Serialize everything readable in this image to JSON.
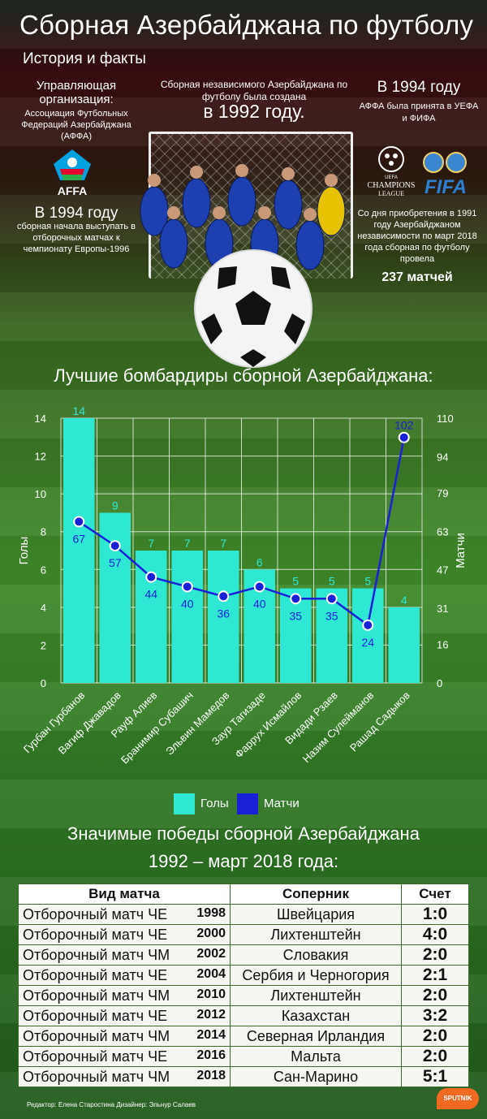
{
  "header": {
    "title": "Сборная Азербайджана по футболу",
    "subtitle": "История и факты"
  },
  "left_col": {
    "heading": "Управляющая организация:",
    "org": "Ассоциация Футбольных Федераций Азербайджана (АФФА)",
    "logo_text": "AFFA",
    "year_big": "В 1994 году",
    "year_text": "сборная начала выступать в отборочных матчах к чемпионату Европы-1996"
  },
  "center_col": {
    "intro": "Сборная независимого Азербайджана по футболу была создана",
    "year_big": "в 1992 году."
  },
  "right_col": {
    "year_big": "В 1994 году",
    "text": "АФФА была принята в УЕФА и ФИФА",
    "ucl_logo_line1": "CHAMPIONS",
    "ucl_logo_line2": "LEAGUE",
    "uefa_small": "UEFA",
    "fifa_logo": "FIFA",
    "stats_text": "Со дня приобретения в 1991 году Азербайджаном независимости по март 2018 года сборная по футболу провела",
    "stats_big": "237 матчей"
  },
  "chart_title": "Лучшие бомбардиры сборной Азербайджана:",
  "chart_data": {
    "type": "bar",
    "categories": [
      "Гурбан Гурбанов",
      "Вагиф Джавадов",
      "Рауф Алиев",
      "Бранимир Субашич",
      "Эльвин Мамедов",
      "Заур Тагизаде",
      "Фаррух Исмайлов",
      "Видади Рзаев",
      "Назим Сулейманов",
      "Рашад Садыков"
    ],
    "series": [
      {
        "name": "Голы",
        "type": "bar",
        "axis": "left",
        "values": [
          14,
          9,
          7,
          7,
          7,
          6,
          5,
          5,
          5,
          4
        ]
      },
      {
        "name": "Матчи",
        "type": "line",
        "axis": "right",
        "values": [
          67,
          57,
          44,
          40,
          36,
          40,
          35,
          35,
          24,
          102
        ]
      }
    ],
    "ylabel": "Голы",
    "y2label": "Матчи",
    "ylim": [
      0,
      14
    ],
    "y2lim": [
      0,
      110
    ],
    "yticks": [
      0,
      2,
      4,
      6,
      8,
      10,
      12,
      14
    ],
    "y2ticks": [
      0,
      16,
      31,
      47,
      63,
      79,
      94,
      110
    ],
    "grid": true,
    "legend": "bottom"
  },
  "colors": {
    "bar": "#2fe8d4",
    "line": "#1a1fd8",
    "bar_label": "#2fe8d4",
    "line_label": "#1a1fd8"
  },
  "wins_title_line1": "Значимые победы сборной Азербайджана",
  "wins_title_line2": "1992 – март 2018 года:",
  "wins": {
    "headers": [
      "Вид матча",
      "Соперник",
      "Счет"
    ],
    "rows": [
      {
        "type": "Отборочный матч ЧЕ",
        "year": "1998",
        "opponent": "Швейцария",
        "score": "1:0"
      },
      {
        "type": "Отборочный матч ЧЕ",
        "year": "2000",
        "opponent": "Лихтенштейн",
        "score": "4:0"
      },
      {
        "type": "Отборочный матч ЧМ",
        "year": "2002",
        "opponent": "Словакия",
        "score": "2:0"
      },
      {
        "type": "Отборочный матч ЧЕ",
        "year": "2004",
        "opponent": "Сербия и Черногория",
        "score": "2:1"
      },
      {
        "type": "Отборочный матч ЧМ",
        "year": "2010",
        "opponent": "Лихтенштейн",
        "score": "2:0"
      },
      {
        "type": "Отборочный матч ЧЕ",
        "year": "2012",
        "opponent": "Казахстан",
        "score": "3:2"
      },
      {
        "type": "Отборочный матч ЧМ",
        "year": "2014",
        "opponent": "Северная Ирландия",
        "score": "2:0"
      },
      {
        "type": "Отборочный матч ЧЕ",
        "year": "2016",
        "opponent": "Мальта",
        "score": "2:0"
      },
      {
        "type": "Отборочный матч ЧМ",
        "year": "2018",
        "opponent": "Сан-Марино",
        "score": "5:1"
      }
    ]
  },
  "credits": "Редактор: Елена Старостина  Дизайнер: Эльнур Салаев",
  "brand": "SPUTNIK"
}
